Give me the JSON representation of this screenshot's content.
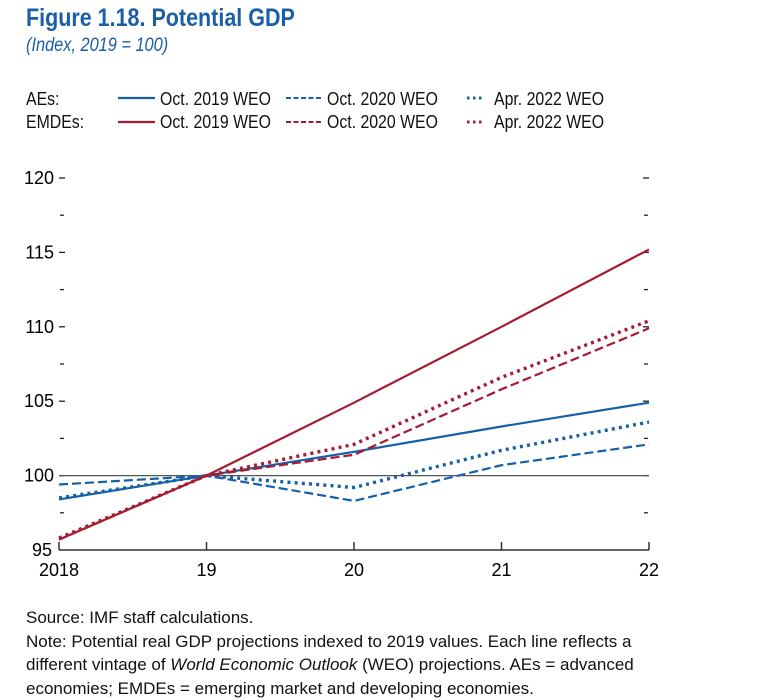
{
  "header": {
    "title": "Figure 1.18.  Potential GDP",
    "subtitle": "(Index, 2019 = 100)"
  },
  "legend": {
    "groups": [
      {
        "label": "AEs:",
        "color": "#1560a8"
      },
      {
        "label": "EMDEs:",
        "color": "#a51c30"
      }
    ],
    "styles": [
      {
        "label": "Oct. 2019 WEO",
        "style": "solid"
      },
      {
        "label": "Oct. 2020 WEO",
        "style": "dashed"
      },
      {
        "label": "Apr. 2022 WEO",
        "style": "dotted"
      }
    ]
  },
  "chart_data": {
    "type": "line",
    "title": "Figure 1.18.  Potential GDP",
    "subtitle": "(Index, 2019 = 100)",
    "x": [
      "2018",
      "19",
      "20",
      "21",
      "22"
    ],
    "ylim": [
      95,
      120
    ],
    "yticks": [
      95,
      100,
      105,
      110,
      115,
      120
    ],
    "ytick_labels": [
      "95",
      "100",
      "105",
      "110",
      "115",
      "120"
    ],
    "reference_line": 100,
    "legend_position": "top",
    "grid": false,
    "series": [
      {
        "name": "AEs: Oct. 2019 WEO",
        "color": "#1560a8",
        "style": "solid",
        "values": [
          98.4,
          100,
          101.6,
          103.3,
          104.9
        ]
      },
      {
        "name": "AEs: Oct. 2020 WEO",
        "color": "#1560a8",
        "style": "dashed",
        "values": [
          99.4,
          100,
          98.3,
          100.7,
          102.1
        ]
      },
      {
        "name": "AEs: Apr. 2022 WEO",
        "color": "#1560a8",
        "style": "dotted",
        "values": [
          98.5,
          100,
          99.2,
          101.7,
          103.6
        ]
      },
      {
        "name": "EMDEs: Oct. 2019 WEO",
        "color": "#a51c30",
        "style": "solid",
        "values": [
          95.7,
          100,
          104.9,
          110.0,
          115.2
        ]
      },
      {
        "name": "EMDEs: Oct. 2020 WEO",
        "color": "#a51c30",
        "style": "dashed",
        "values": [
          95.7,
          100,
          101.4,
          105.8,
          109.9
        ]
      },
      {
        "name": "EMDEs: Apr. 2022 WEO",
        "color": "#a51c30",
        "style": "dotted",
        "values": [
          95.8,
          100,
          102.1,
          106.6,
          110.4
        ]
      }
    ]
  },
  "notes": {
    "source": "Source: IMF staff calculations.",
    "note_line1": "Note: Potential real GDP projections indexed to 2019 values. Each line reflects a",
    "note_line2_pre": "different vintage of ",
    "note_line2_em": "World Economic Outlook",
    "note_line2_post": " (WEO) projections. AEs = advanced",
    "note_line3": "economies; EMDEs = emerging market and developing economies."
  }
}
